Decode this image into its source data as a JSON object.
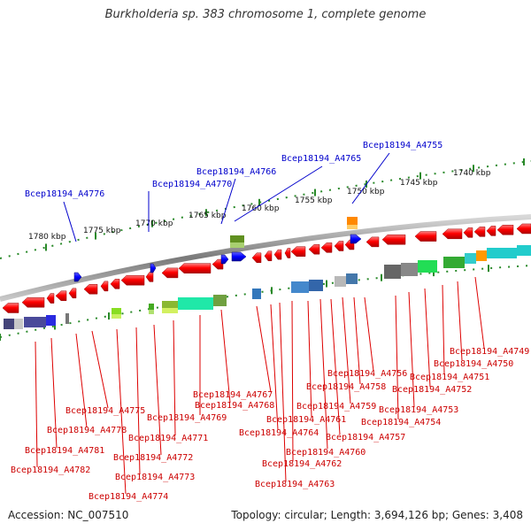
{
  "header": {
    "title": "Burkholderia sp. 383 chromosome 1, complete genome"
  },
  "footer": {
    "accession": "Accession: NC_007510",
    "stats": "Topology: circular; Length: 3,694,126 bp; Genes: 3,408"
  },
  "colors": {
    "forward_gene": "#ff0000",
    "reverse_gene": "#0000ff",
    "top_label": "#0000cc",
    "bottom_label": "#cc0000",
    "tick": "#2a8a2a",
    "backbone": "#8c8c8c"
  },
  "scale_labels": [
    "1780 kbp",
    "1775 kbp",
    "1770 kbp",
    "1765 kbp",
    "1760 kbp",
    "1755 kbp",
    "1750 kbp",
    "1745 kbp",
    "1740 kbp"
  ],
  "top_labels": [
    "Bcep18194_A4776",
    "Bcep18194_A4770",
    "Bcep18194_A4766",
    "Bcep18194_A4765",
    "Bcep18194_A4755"
  ],
  "bottom_labels": [
    "Bcep18194_A4749",
    "Bcep18194_A4750",
    "Bcep18194_A4751",
    "Bcep18194_A4752",
    "Bcep18194_A4753",
    "Bcep18194_A4754",
    "Bcep18194_A4756",
    "Bcep18194_A4758",
    "Bcep18194_A4759",
    "Bcep18194_A4757",
    "Bcep18194_A4760",
    "Bcep18194_A4761",
    "Bcep18194_A4762",
    "Bcep18194_A4763",
    "Bcep18194_A4764",
    "Bcep18194_A4767",
    "Bcep18194_A4768",
    "Bcep18194_A4769",
    "Bcep18194_A4771",
    "Bcep18194_A4772",
    "Bcep18194_A4773",
    "Bcep18194_A4774",
    "Bcep18194_A4775",
    "Bcep18194_A4778",
    "Bcep18194_A4781",
    "Bcep18194_A4782"
  ]
}
